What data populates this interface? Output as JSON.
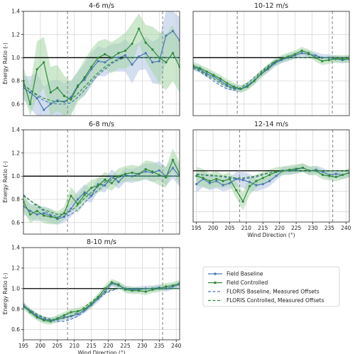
{
  "chart_data": [
    {
      "type": "line",
      "title": "4-6 m/s",
      "xlabel": "",
      "ylabel": "Energy Ratio (-)",
      "xlim": [
        195,
        241
      ],
      "ylim": [
        0.5,
        1.4
      ],
      "xticks": [],
      "yticks": [
        "0.6",
        "0.8",
        "1.0",
        "1.2",
        "1.4"
      ],
      "grid": true,
      "hline": 1.0,
      "vlines": [
        208,
        236
      ],
      "x": [
        195,
        197,
        199,
        201,
        203,
        205,
        207,
        209,
        211,
        213,
        215,
        217,
        219,
        221,
        223,
        225,
        227,
        229,
        231,
        233,
        235,
        237,
        239,
        241
      ],
      "series": [
        {
          "name": "Field Baseline",
          "values": [
            0.74,
            0.7,
            0.65,
            0.55,
            0.6,
            0.63,
            0.62,
            0.66,
            0.76,
            0.81,
            0.9,
            0.97,
            0.96,
            1.0,
            1.0,
            1.02,
            0.94,
            1.01,
            1.04,
            0.96,
            0.97,
            1.19,
            1.23,
            1.15
          ]
        },
        {
          "name": "Field Controlled",
          "values": [
            0.8,
            0.6,
            0.9,
            0.96,
            0.7,
            0.74,
            0.67,
            0.64,
            0.75,
            0.83,
            0.92,
            1.0,
            1.03,
            1.0,
            1.04,
            1.06,
            1.12,
            1.25,
            1.13,
            1.07,
            1.0,
            0.96,
            1.04,
            0.92
          ]
        },
        {
          "name": "FLORIS Baseline, Measured Offsets",
          "values": [
            0.77,
            0.72,
            0.67,
            0.63,
            0.61,
            0.6,
            0.6,
            0.61,
            0.66,
            0.72,
            0.79,
            0.85,
            0.9,
            0.95,
            0.98,
            1.0,
            1.0,
            1.0,
            1.0,
            1.0,
            1.0,
            1.0,
            1.0,
            1.0
          ]
        },
        {
          "name": "FLORIS Controlled, Measured Offsets",
          "values": [
            0.76,
            0.72,
            0.68,
            0.65,
            0.63,
            0.62,
            0.62,
            0.64,
            0.69,
            0.75,
            0.81,
            0.87,
            0.92,
            0.96,
            0.99,
            1.0,
            1.0,
            1.0,
            1.0,
            1.0,
            1.0,
            1.0,
            1.0,
            1.0
          ]
        }
      ]
    },
    {
      "type": "line",
      "title": "10-12 m/s",
      "xlabel": "",
      "ylabel": "",
      "xlim": [
        195,
        241
      ],
      "ylim": [
        0.5,
        1.4
      ],
      "xticks": [],
      "yticks": [],
      "grid": true,
      "hline": 1.0,
      "vlines": [
        208,
        236
      ],
      "x": [
        195,
        197,
        199,
        201,
        203,
        205,
        207,
        209,
        211,
        213,
        215,
        217,
        219,
        221,
        223,
        225,
        227,
        229,
        231,
        233,
        235,
        237,
        239,
        241
      ],
      "series": [
        {
          "name": "Field Baseline",
          "values": [
            0.92,
            0.9,
            0.86,
            0.84,
            0.8,
            0.76,
            0.74,
            0.73,
            0.76,
            0.8,
            0.86,
            0.9,
            0.95,
            0.98,
            1.0,
            1.02,
            1.04,
            1.03,
            1.02,
            1.0,
            1.0,
            0.99,
            0.98,
            0.99
          ]
        },
        {
          "name": "Field Controlled",
          "values": [
            0.93,
            0.91,
            0.88,
            0.85,
            0.82,
            0.78,
            0.75,
            0.73,
            0.75,
            0.8,
            0.86,
            0.91,
            0.96,
            0.99,
            1.01,
            1.03,
            1.06,
            1.04,
            1.0,
            0.97,
            0.98,
            0.99,
            0.99,
            0.99
          ]
        },
        {
          "name": "FLORIS Baseline, Measured Offsets",
          "values": [
            0.91,
            0.88,
            0.84,
            0.8,
            0.76,
            0.73,
            0.72,
            0.73,
            0.76,
            0.81,
            0.87,
            0.92,
            0.96,
            0.99,
            1.0,
            1.0,
            1.0,
            1.0,
            1.0,
            1.0,
            1.0,
            1.0,
            1.0,
            1.0
          ]
        },
        {
          "name": "FLORIS Controlled, Measured Offsets",
          "values": [
            0.92,
            0.89,
            0.85,
            0.82,
            0.78,
            0.75,
            0.73,
            0.74,
            0.78,
            0.83,
            0.88,
            0.93,
            0.97,
            0.99,
            1.0,
            1.0,
            1.0,
            1.0,
            1.0,
            1.0,
            1.0,
            1.0,
            1.0,
            1.0
          ]
        }
      ]
    },
    {
      "type": "line",
      "title": "6-8 m/s",
      "xlabel": "",
      "ylabel": "Energy Ratio (-)",
      "xlim": [
        195,
        241
      ],
      "ylim": [
        0.5,
        1.4
      ],
      "xticks": [],
      "yticks": [
        "0.6",
        "0.8",
        "1.0",
        "1.2",
        "1.4"
      ],
      "grid": true,
      "hline": 1.0,
      "vlines": [
        208,
        236
      ],
      "x": [
        195,
        197,
        199,
        201,
        203,
        205,
        207,
        209,
        211,
        213,
        215,
        217,
        219,
        221,
        223,
        225,
        227,
        229,
        231,
        233,
        235,
        237,
        239,
        241
      ],
      "series": [
        {
          "name": "Field Baseline",
          "values": [
            0.74,
            0.7,
            0.67,
            0.68,
            0.66,
            0.63,
            0.65,
            0.72,
            0.8,
            0.86,
            0.83,
            0.93,
            0.92,
            1.0,
            0.95,
            1.01,
            1.0,
            1.02,
            1.04,
            1.03,
            1.05,
            1.0,
            1.07,
            1.0
          ]
        },
        {
          "name": "Field Controlled",
          "values": [
            0.78,
            0.67,
            0.7,
            0.66,
            0.65,
            0.64,
            0.68,
            0.83,
            0.76,
            0.84,
            0.9,
            0.92,
            0.97,
            0.94,
            1.0,
            1.02,
            1.03,
            1.02,
            1.06,
            1.04,
            1.01,
            0.99,
            1.14,
            1.02
          ]
        },
        {
          "name": "FLORIS Baseline, Measured Offsets",
          "values": [
            0.84,
            0.79,
            0.74,
            0.7,
            0.67,
            0.65,
            0.65,
            0.67,
            0.71,
            0.77,
            0.83,
            0.88,
            0.93,
            0.97,
            0.99,
            1.0,
            1.0,
            1.0,
            1.0,
            1.0,
            1.0,
            1.0,
            1.0,
            1.0
          ]
        },
        {
          "name": "FLORIS Controlled, Measured Offsets",
          "values": [
            0.83,
            0.79,
            0.75,
            0.71,
            0.69,
            0.67,
            0.67,
            0.7,
            0.75,
            0.81,
            0.86,
            0.91,
            0.95,
            0.98,
            1.0,
            1.0,
            1.0,
            1.0,
            1.0,
            1.0,
            1.0,
            1.0,
            1.0,
            1.0
          ]
        }
      ]
    },
    {
      "type": "line",
      "title": "12-14 m/s",
      "xlabel": "Wind Direction (°)",
      "ylabel": "",
      "xlim": [
        194,
        241
      ],
      "ylim": [
        0.5,
        1.4
      ],
      "xticks": [
        "195",
        "200",
        "205",
        "210",
        "215",
        "220",
        "225",
        "230",
        "235",
        "240"
      ],
      "yticks": [],
      "grid": true,
      "hline": 1.0,
      "vlines": [
        208,
        236
      ],
      "x": [
        195,
        197,
        199,
        201,
        203,
        205,
        207,
        209,
        211,
        213,
        215,
        217,
        219,
        221,
        223,
        225,
        227,
        229,
        231,
        233,
        235,
        237,
        239,
        241
      ],
      "series": [
        {
          "name": "Field Baseline",
          "values": [
            0.87,
            0.92,
            0.88,
            0.9,
            0.86,
            0.88,
            0.92,
            0.91,
            0.89,
            0.86,
            0.87,
            0.9,
            0.95,
            1.0,
            1.0,
            1.01,
            1.03,
            1.0,
            1.01,
            0.99,
            0.96,
            0.97,
            0.96,
            0.98
          ]
        },
        {
          "name": "Field Controlled",
          "values": [
            0.95,
            0.93,
            0.9,
            0.92,
            0.9,
            0.92,
            0.81,
            0.7,
            0.85,
            0.9,
            0.93,
            0.96,
            0.99,
            1.0,
            1.01,
            1.02,
            1.03,
            1.0,
            1.0,
            0.96,
            0.95,
            0.94,
            0.96,
            0.98
          ]
        },
        {
          "name": "FLORIS Baseline, Measured Offsets",
          "values": [
            0.96,
            0.96,
            0.95,
            0.95,
            0.94,
            0.93,
            0.92,
            0.92,
            0.93,
            0.94,
            0.96,
            0.98,
            0.99,
            1.0,
            1.0,
            1.0,
            1.0,
            1.0,
            1.0,
            1.0,
            1.0,
            1.0,
            1.0,
            1.0
          ]
        },
        {
          "name": "FLORIS Controlled, Measured Offsets",
          "values": [
            0.97,
            0.96,
            0.96,
            0.95,
            0.95,
            0.94,
            0.93,
            0.93,
            0.94,
            0.95,
            0.97,
            0.98,
            0.99,
            1.0,
            1.0,
            1.0,
            1.0,
            1.0,
            1.0,
            1.0,
            1.0,
            1.0,
            1.0,
            1.0
          ]
        }
      ]
    },
    {
      "type": "line",
      "title": "8-10 m/s",
      "xlabel": "Wind Direction (°)",
      "ylabel": "Energy Ratio (-)",
      "xlim": [
        195,
        241
      ],
      "ylim": [
        0.5,
        1.4
      ],
      "xticks": [
        "195",
        "200",
        "205",
        "210",
        "215",
        "220",
        "225",
        "230",
        "235",
        "240"
      ],
      "yticks": [
        "0.6",
        "0.8",
        "1.0",
        "1.2",
        "1.4"
      ],
      "grid": true,
      "hline": 1.0,
      "vlines": [
        208,
        236
      ],
      "x": [
        195,
        197,
        199,
        201,
        203,
        205,
        207,
        209,
        211,
        213,
        215,
        217,
        219,
        221,
        223,
        225,
        227,
        229,
        231,
        233,
        235,
        237,
        239,
        241
      ],
      "series": [
        {
          "name": "Field Baseline",
          "values": [
            0.84,
            0.78,
            0.73,
            0.7,
            0.69,
            0.7,
            0.72,
            0.73,
            0.75,
            0.79,
            0.84,
            0.9,
            0.97,
            1.05,
            1.03,
            1.0,
            0.99,
            0.99,
            1.0,
            1.0,
            1.01,
            1.0,
            1.02,
            1.04
          ]
        },
        {
          "name": "Field Controlled",
          "values": [
            0.83,
            0.77,
            0.72,
            0.69,
            0.68,
            0.71,
            0.74,
            0.77,
            0.78,
            0.8,
            0.85,
            0.92,
            1.0,
            1.06,
            1.04,
            0.99,
            0.98,
            0.98,
            0.97,
            0.99,
            1.0,
            1.02,
            1.03,
            1.05
          ]
        },
        {
          "name": "FLORIS Baseline, Measured Offsets",
          "values": [
            0.82,
            0.78,
            0.74,
            0.71,
            0.69,
            0.68,
            0.68,
            0.7,
            0.73,
            0.78,
            0.84,
            0.9,
            0.95,
            0.98,
            1.0,
            1.0,
            1.0,
            1.0,
            1.0,
            1.0,
            1.0,
            1.0,
            1.0,
            1.0
          ]
        },
        {
          "name": "FLORIS Controlled, Measured Offsets",
          "values": [
            0.83,
            0.79,
            0.75,
            0.72,
            0.7,
            0.7,
            0.71,
            0.73,
            0.77,
            0.82,
            0.87,
            0.92,
            0.96,
            0.99,
            1.0,
            1.0,
            1.0,
            1.0,
            1.0,
            1.0,
            1.0,
            1.0,
            1.0,
            1.0
          ]
        }
      ]
    }
  ],
  "legend": {
    "position": "center-right",
    "entries": [
      {
        "label": "Field Baseline",
        "color": "#4a78b4",
        "style": "solid-marker"
      },
      {
        "label": "Field Controlled",
        "color": "#2e8a3a",
        "style": "solid-marker"
      },
      {
        "label": "FLORIS Baseline, Measured Offsets",
        "color": "#4a78b4",
        "style": "dashed"
      },
      {
        "label": "FLORIS Controlled, Measured Offsets",
        "color": "#2e8a3a",
        "style": "dashed"
      }
    ]
  },
  "colors": {
    "baseline": "#4a78b4",
    "controlled": "#2e8a3a",
    "baseline_band": "#aec3e2",
    "controlled_band": "#a6d5a6",
    "reference": "#000000",
    "vline": "#8c8c8c",
    "grid": "#d8d8d8"
  }
}
